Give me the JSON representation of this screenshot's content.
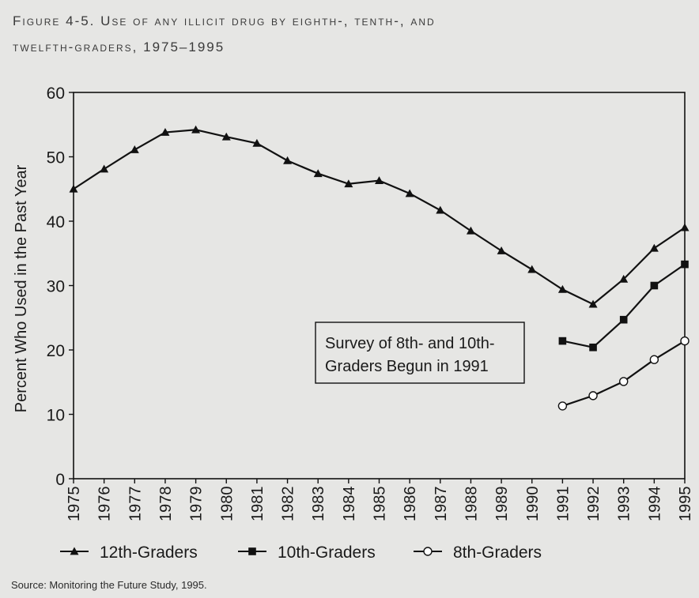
{
  "title_line1": "Figure 4-5. Use of any illicit drug by eighth-, tenth-, and",
  "title_line2": "twelfth-graders, 1975–1995",
  "source": "Source: Monitoring the Future Study, 1995.",
  "chart_data": {
    "type": "line",
    "title": "Figure 4-5. Use of any illicit drug by eighth-, tenth-, and twelfth-graders, 1975–1995",
    "xlabel": "",
    "ylabel": "Percent Who Used in the Past Year",
    "ylim": [
      0,
      60
    ],
    "yticks": [
      0,
      10,
      20,
      30,
      40,
      50,
      60
    ],
    "x": [
      "1975",
      "1976",
      "1977",
      "1978",
      "1979",
      "1980",
      "1981",
      "1982",
      "1983",
      "1984",
      "1985",
      "1986",
      "1987",
      "1988",
      "1989",
      "1990",
      "1991",
      "1992",
      "1993",
      "1994",
      "1995"
    ],
    "grid": false,
    "legend_position": "bottom",
    "annotation": [
      "Survey of 8th- and 10th-",
      "Graders Begun in 1991"
    ],
    "series": [
      {
        "name": "12th-Graders",
        "marker": "triangle",
        "x": [
          "1975",
          "1976",
          "1977",
          "1978",
          "1979",
          "1980",
          "1981",
          "1982",
          "1983",
          "1984",
          "1985",
          "1986",
          "1987",
          "1988",
          "1989",
          "1990",
          "1991",
          "1992",
          "1993",
          "1994",
          "1995"
        ],
        "values": [
          45.0,
          48.1,
          51.1,
          53.8,
          54.2,
          53.1,
          52.1,
          49.4,
          47.4,
          45.8,
          46.3,
          44.3,
          41.7,
          38.5,
          35.4,
          32.5,
          29.4,
          27.1,
          31.0,
          35.8,
          39.0
        ]
      },
      {
        "name": "10th-Graders",
        "marker": "square",
        "x": [
          "1991",
          "1992",
          "1993",
          "1994",
          "1995"
        ],
        "values": [
          21.4,
          20.4,
          24.7,
          30.0,
          33.3
        ]
      },
      {
        "name": "8th-Graders",
        "marker": "circle",
        "x": [
          "1991",
          "1992",
          "1993",
          "1994",
          "1995"
        ],
        "values": [
          11.3,
          12.9,
          15.1,
          18.5,
          21.4
        ]
      }
    ]
  }
}
